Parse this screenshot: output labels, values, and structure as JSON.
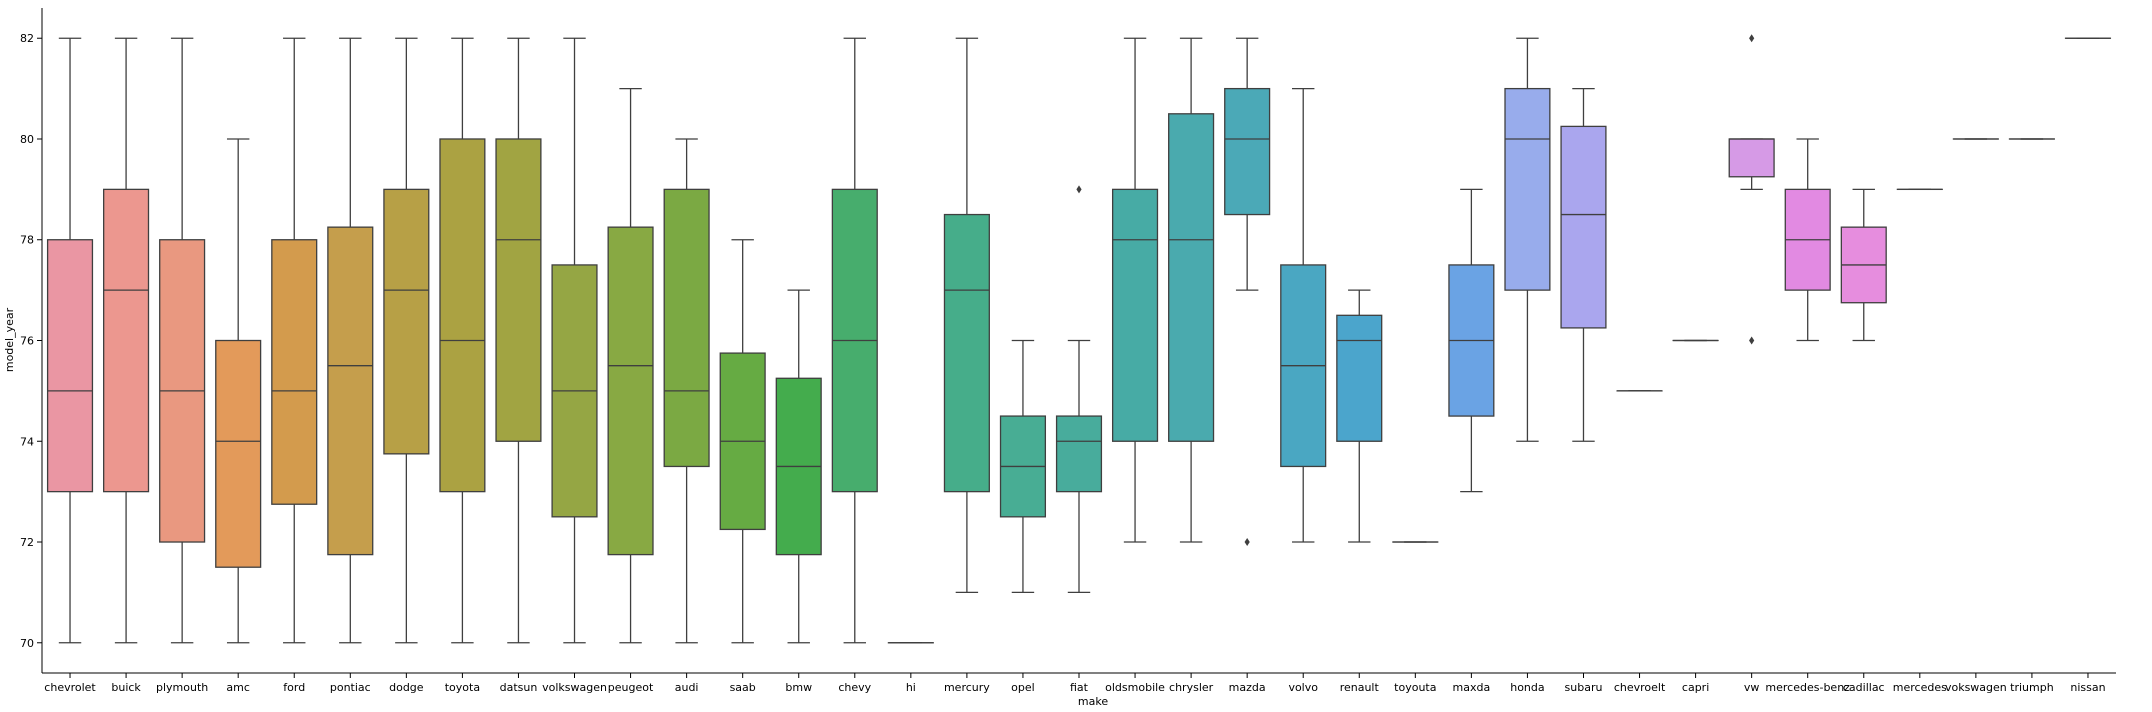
{
  "chart_data": {
    "type": "box",
    "xlabel": "make",
    "ylabel": "model_year",
    "ylim": [
      69.4,
      82.6
    ],
    "yticks": [
      70,
      72,
      74,
      76,
      78,
      80,
      82
    ],
    "grid": false,
    "categories": [
      "chevrolet",
      "buick",
      "plymouth",
      "amc",
      "ford",
      "pontiac",
      "dodge",
      "toyota",
      "datsun",
      "volkswagen",
      "peugeot",
      "audi",
      "saab",
      "bmw",
      "chevy",
      "hi",
      "mercury",
      "opel",
      "fiat",
      "oldsmobile",
      "chrysler",
      "mazda",
      "volvo",
      "renault",
      "toyouta",
      "maxda",
      "honda",
      "subaru",
      "chevroelt",
      "capri",
      "vw",
      "mercedes-benz",
      "cadillac",
      "mercedes",
      "vokswagen",
      "triumph",
      "nissan"
    ],
    "boxes": [
      {
        "make": "chevrolet",
        "whislo": 70,
        "q1": 73,
        "med": 75,
        "q3": 78,
        "whishi": 82,
        "fliers": [],
        "color": "#ea96a3"
      },
      {
        "make": "buick",
        "whislo": 70,
        "q1": 73,
        "med": 77,
        "q3": 79,
        "whishi": 82,
        "fliers": [],
        "color": "#ec978f"
      },
      {
        "make": "plymouth",
        "whislo": 70,
        "q1": 72,
        "med": 75,
        "q3": 78,
        "whishi": 82,
        "fliers": [],
        "color": "#e99880"
      },
      {
        "make": "amc",
        "whislo": 70,
        "q1": 71.5,
        "med": 74,
        "q3": 76,
        "whishi": 80,
        "fliers": [],
        "color": "#e39a5a"
      },
      {
        "make": "ford",
        "whislo": 70,
        "q1": 72.75,
        "med": 75,
        "q3": 78,
        "whishi": 82,
        "fliers": [],
        "color": "#d39b4d"
      },
      {
        "make": "pontiac",
        "whislo": 70,
        "q1": 71.75,
        "med": 75.5,
        "q3": 78.25,
        "whishi": 82,
        "fliers": [],
        "color": "#c59e4c"
      },
      {
        "make": "dodge",
        "whislo": 70,
        "q1": 73.75,
        "med": 77,
        "q3": 79,
        "whishi": 82,
        "fliers": [],
        "color": "#b7a046"
      },
      {
        "make": "toyota",
        "whislo": 70,
        "q1": 73,
        "med": 76,
        "q3": 80,
        "whishi": 82,
        "fliers": [],
        "color": "#aba242"
      },
      {
        "make": "datsun",
        "whislo": 70,
        "q1": 74,
        "med": 78,
        "q3": 80,
        "whishi": 82,
        "fliers": [],
        "color": "#a1a442"
      },
      {
        "make": "volkswagen",
        "whislo": 70,
        "q1": 72.5,
        "med": 75,
        "q3": 77.5,
        "whishi": 82,
        "fliers": [],
        "color": "#95a644"
      },
      {
        "make": "peugeot",
        "whislo": 70,
        "q1": 71.75,
        "med": 75.5,
        "q3": 78.25,
        "whishi": 81,
        "fliers": [],
        "color": "#88a943"
      },
      {
        "make": "audi",
        "whislo": 70,
        "q1": 73.5,
        "med": 75,
        "q3": 79,
        "whishi": 80,
        "fliers": [],
        "color": "#7ba943"
      },
      {
        "make": "saab",
        "whislo": 70,
        "q1": 72.25,
        "med": 74,
        "q3": 75.75,
        "whishi": 78,
        "fliers": [],
        "color": "#66ab43"
      },
      {
        "make": "bmw",
        "whislo": 70,
        "q1": 71.75,
        "med": 73.5,
        "q3": 75.25,
        "whishi": 77,
        "fliers": [],
        "color": "#44ac4d"
      },
      {
        "make": "chevy",
        "whislo": 70,
        "q1": 73,
        "med": 76,
        "q3": 79,
        "whishi": 82,
        "fliers": [],
        "color": "#47ad6d"
      },
      {
        "make": "hi",
        "whislo": 70,
        "q1": 70,
        "med": 70,
        "q3": 70,
        "whishi": 70,
        "fliers": [],
        "color": "#48ad80"
      },
      {
        "make": "mercury",
        "whislo": 71,
        "q1": 73,
        "med": 77,
        "q3": 78.5,
        "whishi": 82,
        "fliers": [],
        "color": "#46ad8a"
      },
      {
        "make": "opel",
        "whislo": 71,
        "q1": 72.5,
        "med": 73.5,
        "q3": 74.5,
        "whishi": 76,
        "fliers": [],
        "color": "#48ad94"
      },
      {
        "make": "fiat",
        "whislo": 71,
        "q1": 73,
        "med": 74,
        "q3": 74.5,
        "whishi": 76,
        "fliers": [
          79
        ],
        "color": "#48ac9c"
      },
      {
        "make": "oldsmobile",
        "whislo": 72,
        "q1": 74,
        "med": 78,
        "q3": 79,
        "whishi": 82,
        "fliers": [],
        "color": "#47aba5"
      },
      {
        "make": "chrysler",
        "whislo": 72,
        "q1": 74,
        "med": 78,
        "q3": 80.5,
        "whishi": 82,
        "fliers": [],
        "color": "#4aaaae"
      },
      {
        "make": "mazda",
        "whislo": 77,
        "q1": 78.5,
        "med": 80,
        "q3": 81,
        "whishi": 82,
        "fliers": [
          72
        ],
        "color": "#4ba9b7"
      },
      {
        "make": "volvo",
        "whislo": 72,
        "q1": 73.5,
        "med": 75.5,
        "q3": 77.5,
        "whishi": 81,
        "fliers": [],
        "color": "#4aa7c2"
      },
      {
        "make": "renault",
        "whislo": 72,
        "q1": 74,
        "med": 76,
        "q3": 76.5,
        "whishi": 77,
        "fliers": [],
        "color": "#4ba5cc"
      },
      {
        "make": "toyouta",
        "whislo": 72,
        "q1": 72,
        "med": 72,
        "q3": 72,
        "whishi": 72,
        "fliers": [],
        "color": "#55a3d6"
      },
      {
        "make": "maxda",
        "whislo": 73,
        "q1": 74.5,
        "med": 76,
        "q3": 77.5,
        "whishi": 79,
        "fliers": [],
        "color": "#6aa3e4"
      },
      {
        "make": "honda",
        "whislo": 74,
        "q1": 77,
        "med": 80,
        "q3": 81,
        "whishi": 82,
        "fliers": [],
        "color": "#98acec"
      },
      {
        "make": "subaru",
        "whislo": 74,
        "q1": 76.25,
        "med": 78.5,
        "q3": 80.25,
        "whishi": 81,
        "fliers": [],
        "color": "#aaa6ee"
      },
      {
        "make": "chevroelt",
        "whislo": 75,
        "q1": 75,
        "med": 75,
        "q3": 75,
        "whishi": 75,
        "fliers": [],
        "color": "#bd9ded"
      },
      {
        "make": "capri",
        "whislo": 76,
        "q1": 76,
        "med": 76,
        "q3": 76,
        "whishi": 76,
        "fliers": [],
        "color": "#ca98ea"
      },
      {
        "make": "vw",
        "whislo": 79,
        "q1": 79.25,
        "med": 80,
        "q3": 80,
        "whishi": 80,
        "fliers": [
          76,
          82
        ],
        "color": "#d69ae6"
      },
      {
        "make": "mercedes-benz",
        "whislo": 76,
        "q1": 77,
        "med": 78,
        "q3": 79,
        "whishi": 80,
        "fliers": [],
        "color": "#e28ae2"
      },
      {
        "make": "cadillac",
        "whislo": 76,
        "q1": 76.75,
        "med": 77.5,
        "q3": 78.25,
        "whishi": 79,
        "fliers": [],
        "color": "#e68dde"
      },
      {
        "make": "mercedes",
        "whislo": 79,
        "q1": 79,
        "med": 79,
        "q3": 79,
        "whishi": 79,
        "fliers": [],
        "color": "#e88ed6"
      },
      {
        "make": "vokswagen",
        "whislo": 80,
        "q1": 80,
        "med": 80,
        "q3": 80,
        "whishi": 80,
        "fliers": [],
        "color": "#e991cc"
      },
      {
        "make": "triumph",
        "whislo": 80,
        "q1": 80,
        "med": 80,
        "q3": 80,
        "whishi": 80,
        "fliers": [],
        "color": "#ea92c0"
      },
      {
        "make": "nissan",
        "whislo": 82,
        "q1": 82,
        "med": 82,
        "q3": 82,
        "whishi": 82,
        "fliers": [],
        "color": "#ea94b2"
      }
    ]
  }
}
